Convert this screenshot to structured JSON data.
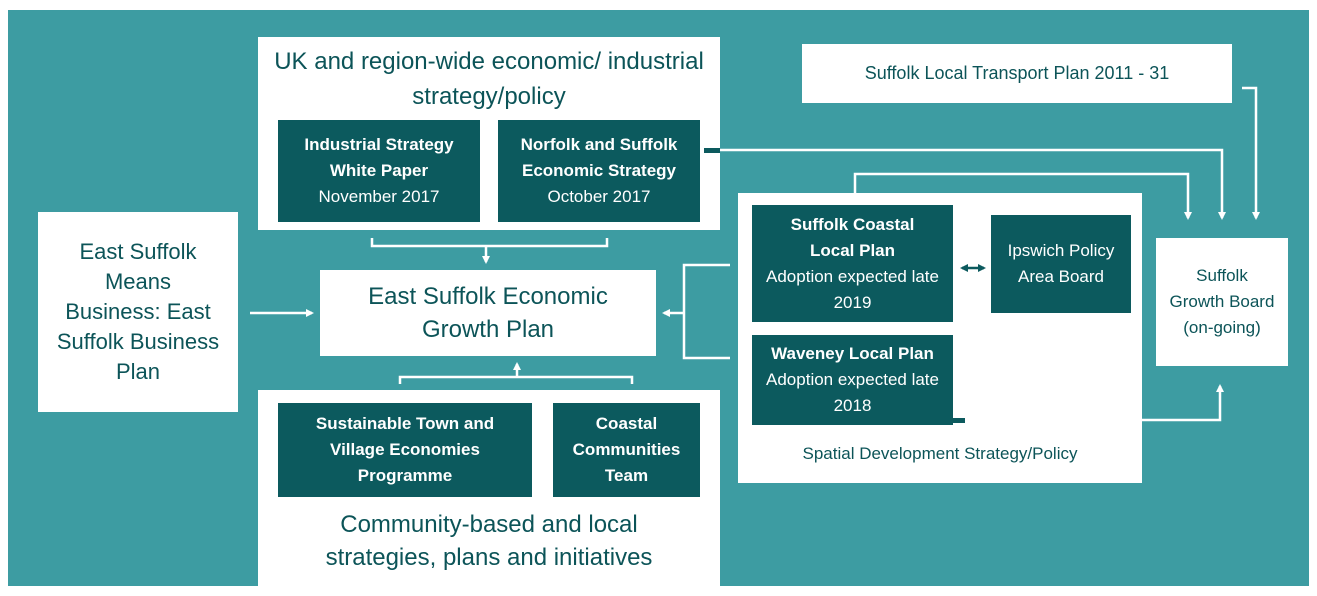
{
  "national": {
    "title": "UK and region-wide economic/ industrial strategy/policy",
    "items": [
      {
        "name": "Industrial Strategy White Paper",
        "date": "November 2017"
      },
      {
        "name": "Norfolk and Suffolk Economic Strategy",
        "date": "October 2017"
      }
    ]
  },
  "transport": "Suffolk Local Transport Plan 2011 - 31",
  "business_plan": "East Suffolk Means Business: East Suffolk Business Plan",
  "growth_plan": "East Suffolk Economic Growth Plan",
  "community": {
    "title": "Community-based and local strategies, plans and initiatives",
    "items": [
      "Sustainable Town and Village Economies Programme",
      "Coastal Communities Team"
    ]
  },
  "spatial": {
    "title": "Spatial Development Strategy/Policy",
    "items": [
      {
        "name": "Suffolk Coastal Local Plan",
        "status": "Adoption expected late 2019"
      },
      {
        "name": "Waveney Local Plan",
        "status": "Adoption expected late 2018"
      }
    ],
    "board": "Ipswich Policy Area Board"
  },
  "growth_board": "Suffolk Growth Board (on-going)"
}
